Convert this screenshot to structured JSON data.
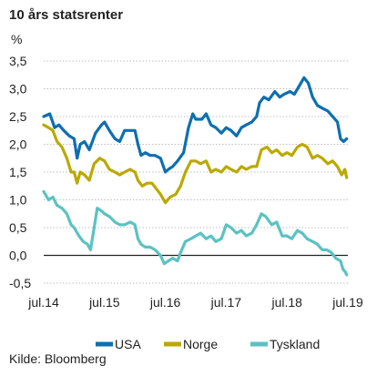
{
  "chart_data": {
    "type": "line",
    "title": "10 års statsrenter",
    "ylabel": "%",
    "xlabel": "",
    "ylim": [
      -0.5,
      3.5
    ],
    "yticks": [
      "3,5",
      "3,0",
      "2,5",
      "2,0",
      "1,5",
      "1,0",
      "0,5",
      "0,0",
      "-0,5"
    ],
    "ytick_values": [
      3.5,
      3.0,
      2.5,
      2.0,
      1.5,
      1.0,
      0.5,
      0.0,
      -0.5
    ],
    "xlim": [
      2014.5,
      2019.5
    ],
    "xticks": [
      "jul.14",
      "jul.15",
      "jul.16",
      "jul.17",
      "jul.18",
      "jul.19"
    ],
    "xtick_values": [
      2014.5,
      2015.5,
      2016.5,
      2017.5,
      2018.5,
      2019.5
    ],
    "grid": "horizontal dashed",
    "legend_position": "bottom",
    "series": [
      {
        "name": "USA",
        "color": "#0e6fb0",
        "points": [
          [
            2014.5,
            2.5
          ],
          [
            2014.6,
            2.55
          ],
          [
            2014.68,
            2.3
          ],
          [
            2014.75,
            2.35
          ],
          [
            2014.83,
            2.25
          ],
          [
            2014.92,
            2.15
          ],
          [
            2015.0,
            2.1
          ],
          [
            2015.05,
            1.75
          ],
          [
            2015.1,
            2.0
          ],
          [
            2015.17,
            2.05
          ],
          [
            2015.25,
            1.9
          ],
          [
            2015.35,
            2.2
          ],
          [
            2015.45,
            2.35
          ],
          [
            2015.5,
            2.4
          ],
          [
            2015.58,
            2.25
          ],
          [
            2015.67,
            2.1
          ],
          [
            2015.75,
            2.05
          ],
          [
            2015.83,
            2.25
          ],
          [
            2015.92,
            2.25
          ],
          [
            2016.0,
            2.25
          ],
          [
            2016.05,
            2.0
          ],
          [
            2016.1,
            1.8
          ],
          [
            2016.17,
            1.85
          ],
          [
            2016.25,
            1.8
          ],
          [
            2016.33,
            1.8
          ],
          [
            2016.42,
            1.75
          ],
          [
            2016.5,
            1.5
          ],
          [
            2016.55,
            1.55
          ],
          [
            2016.62,
            1.6
          ],
          [
            2016.7,
            1.7
          ],
          [
            2016.8,
            1.85
          ],
          [
            2016.88,
            2.3
          ],
          [
            2016.95,
            2.55
          ],
          [
            2017.0,
            2.45
          ],
          [
            2017.1,
            2.45
          ],
          [
            2017.17,
            2.55
          ],
          [
            2017.25,
            2.35
          ],
          [
            2017.33,
            2.3
          ],
          [
            2017.42,
            2.2
          ],
          [
            2017.5,
            2.3
          ],
          [
            2017.58,
            2.25
          ],
          [
            2017.67,
            2.15
          ],
          [
            2017.75,
            2.3
          ],
          [
            2017.83,
            2.35
          ],
          [
            2017.92,
            2.4
          ],
          [
            2018.0,
            2.5
          ],
          [
            2018.05,
            2.75
          ],
          [
            2018.12,
            2.85
          ],
          [
            2018.2,
            2.8
          ],
          [
            2018.3,
            2.95
          ],
          [
            2018.38,
            2.85
          ],
          [
            2018.45,
            2.9
          ],
          [
            2018.55,
            2.95
          ],
          [
            2018.62,
            2.9
          ],
          [
            2018.7,
            3.05
          ],
          [
            2018.78,
            3.2
          ],
          [
            2018.85,
            3.1
          ],
          [
            2018.92,
            2.85
          ],
          [
            2019.0,
            2.7
          ],
          [
            2019.08,
            2.65
          ],
          [
            2019.17,
            2.6
          ],
          [
            2019.25,
            2.5
          ],
          [
            2019.33,
            2.4
          ],
          [
            2019.38,
            2.1
          ],
          [
            2019.43,
            2.05
          ],
          [
            2019.48,
            2.1
          ]
        ]
      },
      {
        "name": "Norge",
        "color": "#bba900",
        "points": [
          [
            2014.5,
            2.35
          ],
          [
            2014.58,
            2.3
          ],
          [
            2014.65,
            2.25
          ],
          [
            2014.72,
            2.05
          ],
          [
            2014.8,
            1.95
          ],
          [
            2014.88,
            1.75
          ],
          [
            2014.95,
            1.5
          ],
          [
            2015.0,
            1.5
          ],
          [
            2015.05,
            1.3
          ],
          [
            2015.1,
            1.5
          ],
          [
            2015.17,
            1.45
          ],
          [
            2015.25,
            1.35
          ],
          [
            2015.33,
            1.65
          ],
          [
            2015.42,
            1.75
          ],
          [
            2015.5,
            1.7
          ],
          [
            2015.58,
            1.55
          ],
          [
            2015.67,
            1.5
          ],
          [
            2015.75,
            1.45
          ],
          [
            2015.83,
            1.5
          ],
          [
            2015.92,
            1.55
          ],
          [
            2016.0,
            1.5
          ],
          [
            2016.05,
            1.35
          ],
          [
            2016.12,
            1.25
          ],
          [
            2016.2,
            1.3
          ],
          [
            2016.28,
            1.3
          ],
          [
            2016.35,
            1.2
          ],
          [
            2016.42,
            1.1
          ],
          [
            2016.5,
            0.95
          ],
          [
            2016.58,
            1.05
          ],
          [
            2016.67,
            1.1
          ],
          [
            2016.75,
            1.25
          ],
          [
            2016.83,
            1.5
          ],
          [
            2016.92,
            1.7
          ],
          [
            2017.0,
            1.7
          ],
          [
            2017.08,
            1.65
          ],
          [
            2017.17,
            1.7
          ],
          [
            2017.25,
            1.5
          ],
          [
            2017.33,
            1.55
          ],
          [
            2017.42,
            1.5
          ],
          [
            2017.5,
            1.6
          ],
          [
            2017.58,
            1.55
          ],
          [
            2017.67,
            1.5
          ],
          [
            2017.75,
            1.6
          ],
          [
            2017.83,
            1.55
          ],
          [
            2017.92,
            1.6
          ],
          [
            2018.0,
            1.6
          ],
          [
            2018.08,
            1.9
          ],
          [
            2018.17,
            1.95
          ],
          [
            2018.25,
            1.85
          ],
          [
            2018.33,
            1.9
          ],
          [
            2018.42,
            1.8
          ],
          [
            2018.5,
            1.85
          ],
          [
            2018.58,
            1.8
          ],
          [
            2018.67,
            1.95
          ],
          [
            2018.75,
            2.0
          ],
          [
            2018.83,
            1.95
          ],
          [
            2018.92,
            1.75
          ],
          [
            2019.0,
            1.8
          ],
          [
            2019.08,
            1.75
          ],
          [
            2019.17,
            1.65
          ],
          [
            2019.25,
            1.7
          ],
          [
            2019.33,
            1.6
          ],
          [
            2019.4,
            1.45
          ],
          [
            2019.45,
            1.55
          ],
          [
            2019.48,
            1.4
          ]
        ]
      },
      {
        "name": "Tyskland",
        "color": "#5bc2c2",
        "points": [
          [
            2014.5,
            1.15
          ],
          [
            2014.58,
            1.0
          ],
          [
            2014.65,
            1.05
          ],
          [
            2014.72,
            0.9
          ],
          [
            2014.8,
            0.85
          ],
          [
            2014.88,
            0.75
          ],
          [
            2014.95,
            0.55
          ],
          [
            2015.0,
            0.5
          ],
          [
            2015.08,
            0.35
          ],
          [
            2015.15,
            0.25
          ],
          [
            2015.22,
            0.2
          ],
          [
            2015.27,
            0.1
          ],
          [
            2015.33,
            0.5
          ],
          [
            2015.38,
            0.85
          ],
          [
            2015.45,
            0.8
          ],
          [
            2015.5,
            0.75
          ],
          [
            2015.58,
            0.7
          ],
          [
            2015.67,
            0.6
          ],
          [
            2015.75,
            0.55
          ],
          [
            2015.83,
            0.55
          ],
          [
            2015.92,
            0.6
          ],
          [
            2016.0,
            0.55
          ],
          [
            2016.05,
            0.3
          ],
          [
            2016.1,
            0.2
          ],
          [
            2016.17,
            0.15
          ],
          [
            2016.25,
            0.15
          ],
          [
            2016.33,
            0.1
          ],
          [
            2016.42,
            0.0
          ],
          [
            2016.48,
            -0.15
          ],
          [
            2016.55,
            -0.1
          ],
          [
            2016.62,
            -0.05
          ],
          [
            2016.7,
            -0.1
          ],
          [
            2016.75,
            0.05
          ],
          [
            2016.83,
            0.25
          ],
          [
            2016.92,
            0.3
          ],
          [
            2017.0,
            0.35
          ],
          [
            2017.08,
            0.4
          ],
          [
            2017.17,
            0.3
          ],
          [
            2017.25,
            0.35
          ],
          [
            2017.33,
            0.25
          ],
          [
            2017.42,
            0.3
          ],
          [
            2017.5,
            0.55
          ],
          [
            2017.58,
            0.5
          ],
          [
            2017.67,
            0.4
          ],
          [
            2017.75,
            0.45
          ],
          [
            2017.83,
            0.35
          ],
          [
            2017.92,
            0.4
          ],
          [
            2018.0,
            0.55
          ],
          [
            2018.08,
            0.75
          ],
          [
            2018.15,
            0.7
          ],
          [
            2018.25,
            0.55
          ],
          [
            2018.33,
            0.6
          ],
          [
            2018.42,
            0.35
          ],
          [
            2018.5,
            0.35
          ],
          [
            2018.58,
            0.3
          ],
          [
            2018.67,
            0.45
          ],
          [
            2018.75,
            0.4
          ],
          [
            2018.83,
            0.3
          ],
          [
            2018.92,
            0.25
          ],
          [
            2019.0,
            0.2
          ],
          [
            2019.08,
            0.1
          ],
          [
            2019.15,
            0.1
          ],
          [
            2019.23,
            0.05
          ],
          [
            2019.3,
            -0.05
          ],
          [
            2019.38,
            -0.1
          ],
          [
            2019.42,
            -0.25
          ],
          [
            2019.46,
            -0.3
          ],
          [
            2019.48,
            -0.35
          ]
        ]
      }
    ],
    "source": "Kilde: Bloomberg"
  }
}
